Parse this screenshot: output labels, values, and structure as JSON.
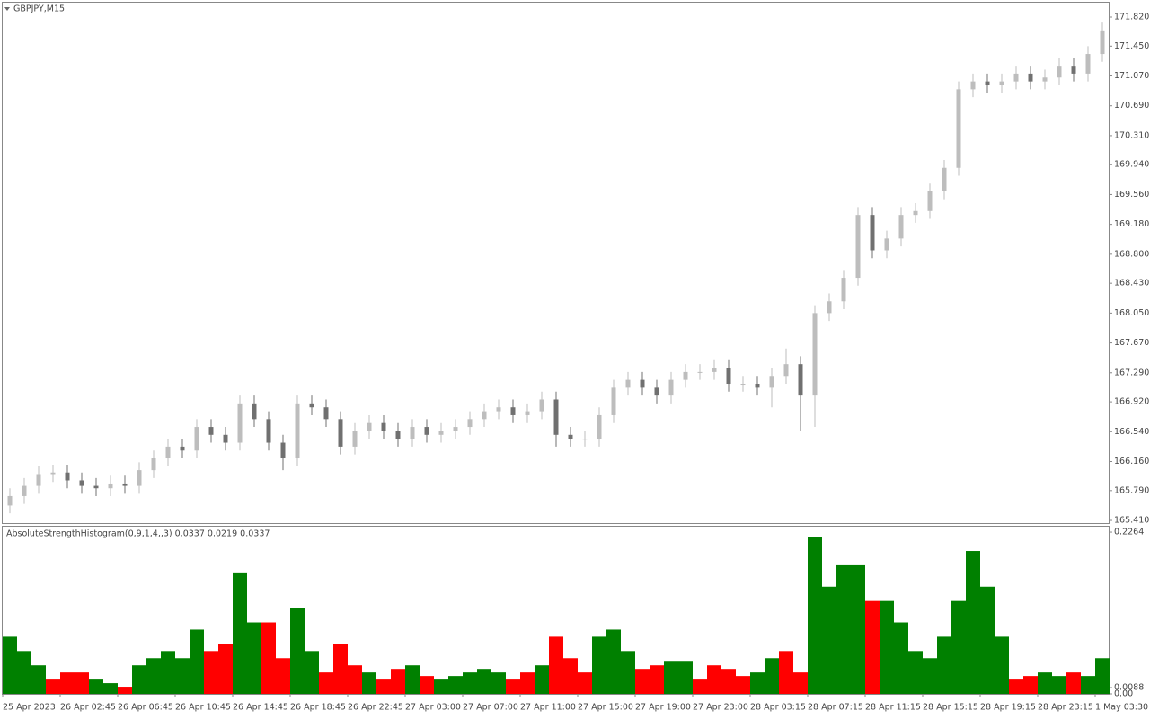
{
  "chart_data": [
    {
      "type": "candlestick",
      "title": "GBPJPY,M15",
      "up_color": "#bdbdbd",
      "down_color": "#707070",
      "ylim": [
        165.376,
        172.003
      ],
      "yticks": [
        {
          "value": 171.82,
          "label": "171.820"
        },
        {
          "value": 171.45,
          "label": "171.450"
        },
        {
          "value": 171.07,
          "label": "171.070"
        },
        {
          "value": 170.69,
          "label": "170.690"
        },
        {
          "value": 170.31,
          "label": "170.310"
        },
        {
          "value": 169.94,
          "label": "169.940"
        },
        {
          "value": 169.56,
          "label": "169.560"
        },
        {
          "value": 169.18,
          "label": "169.180"
        },
        {
          "value": 168.8,
          "label": "168.800"
        },
        {
          "value": 168.43,
          "label": "168.430"
        },
        {
          "value": 168.05,
          "label": "168.050"
        },
        {
          "value": 167.67,
          "label": "167.670"
        },
        {
          "value": 167.29,
          "label": "167.290"
        },
        {
          "value": 166.92,
          "label": "166.920"
        },
        {
          "value": 166.54,
          "label": "166.540"
        },
        {
          "value": 166.16,
          "label": "166.160"
        },
        {
          "value": 165.79,
          "label": "165.790"
        },
        {
          "value": 165.41,
          "label": "165.410"
        }
      ],
      "open": [
        165.6,
        165.72,
        165.85,
        166.0,
        166.02,
        165.92,
        165.85,
        165.82,
        165.88,
        165.85,
        166.05,
        166.2,
        166.35,
        166.3,
        166.6,
        166.5,
        166.4,
        166.9,
        166.7,
        166.4,
        166.2,
        166.9,
        166.85,
        166.7,
        166.35,
        166.55,
        166.65,
        166.55,
        166.45,
        166.6,
        166.5,
        166.55,
        166.6,
        166.7,
        166.8,
        166.85,
        166.75,
        166.8,
        166.95,
        166.5,
        166.45,
        166.45,
        166.75,
        167.1,
        167.2,
        167.1,
        167.0,
        167.2,
        167.3,
        167.3,
        167.35,
        167.15,
        167.15,
        167.1,
        167.25,
        167.4,
        167.0,
        168.05,
        168.2,
        168.5,
        169.3,
        168.85,
        169.0,
        169.3,
        169.35,
        169.6,
        169.9,
        170.9,
        171.0,
        170.95,
        171.0,
        171.1,
        171.0,
        171.05,
        171.2,
        171.1,
        171.35
      ],
      "high": [
        165.82,
        165.95,
        166.1,
        166.12,
        166.12,
        166.02,
        165.95,
        165.98,
        165.98,
        166.15,
        166.3,
        166.45,
        166.45,
        166.7,
        166.7,
        166.6,
        167.0,
        167.0,
        166.8,
        166.5,
        167.0,
        167.0,
        166.95,
        166.8,
        166.65,
        166.75,
        166.75,
        166.65,
        166.7,
        166.7,
        166.65,
        166.7,
        166.8,
        166.9,
        166.95,
        166.95,
        166.9,
        167.05,
        167.05,
        166.6,
        166.55,
        166.85,
        167.2,
        167.3,
        167.3,
        167.2,
        167.3,
        167.4,
        167.4,
        167.45,
        167.45,
        167.25,
        167.25,
        167.35,
        167.6,
        167.5,
        168.15,
        168.3,
        168.6,
        169.4,
        169.4,
        169.1,
        169.4,
        169.45,
        169.7,
        170.0,
        171.0,
        171.1,
        171.1,
        171.1,
        171.2,
        171.2,
        171.15,
        171.3,
        171.3,
        171.45,
        171.75
      ],
      "low": [
        165.5,
        165.62,
        165.75,
        165.9,
        165.82,
        165.75,
        165.72,
        165.72,
        165.75,
        165.75,
        165.95,
        166.1,
        166.2,
        166.2,
        166.4,
        166.3,
        166.3,
        166.6,
        166.3,
        166.05,
        166.1,
        166.75,
        166.6,
        166.25,
        166.25,
        166.45,
        166.45,
        166.35,
        166.35,
        166.4,
        166.4,
        166.45,
        166.5,
        166.6,
        166.7,
        166.65,
        166.65,
        166.7,
        166.35,
        166.35,
        166.35,
        166.35,
        166.65,
        167.0,
        167.0,
        166.9,
        166.9,
        167.1,
        167.2,
        167.2,
        167.05,
        167.05,
        167.0,
        166.85,
        167.15,
        166.55,
        166.6,
        167.95,
        168.1,
        168.4,
        168.75,
        168.75,
        168.9,
        169.2,
        169.25,
        169.5,
        169.8,
        170.8,
        170.85,
        170.85,
        170.9,
        170.9,
        170.9,
        170.95,
        171.0,
        171.0,
        171.25
      ],
      "close": [
        165.72,
        165.85,
        166.0,
        166.02,
        165.92,
        165.85,
        165.82,
        165.88,
        165.85,
        166.05,
        166.2,
        166.35,
        166.3,
        166.6,
        166.5,
        166.4,
        166.9,
        166.7,
        166.4,
        166.2,
        166.9,
        166.85,
        166.7,
        166.35,
        166.55,
        166.65,
        166.55,
        166.45,
        166.6,
        166.5,
        166.55,
        166.6,
        166.7,
        166.8,
        166.85,
        166.75,
        166.8,
        166.95,
        166.5,
        166.45,
        166.45,
        166.75,
        167.1,
        167.2,
        167.1,
        167.0,
        167.2,
        167.3,
        167.3,
        167.35,
        167.15,
        167.15,
        167.1,
        167.25,
        167.4,
        167.0,
        168.05,
        168.2,
        168.5,
        169.3,
        168.85,
        169.0,
        169.3,
        169.35,
        169.6,
        169.9,
        170.9,
        171.0,
        170.95,
        171.0,
        171.1,
        171.0,
        171.05,
        171.2,
        171.1,
        171.35,
        171.65
      ]
    },
    {
      "type": "bar",
      "title": "AbsoluteStrengthHistogram(0,9,1,4,,3) 0.0337 0.0219 0.0337",
      "ylim": [
        0,
        0.234
      ],
      "yticks": [
        {
          "value": 0,
          "label": "0.00"
        },
        0.0088,
        0.2264
      ],
      "categories": [
        "25 Apr 2023",
        null,
        null,
        null,
        "26 Apr 02:45",
        null,
        null,
        null,
        "26 Apr 06:45",
        null,
        null,
        null,
        "26 Apr 10:45",
        null,
        null,
        null,
        "26 Apr 14:45",
        null,
        null,
        null,
        "26 Apr 18:45",
        null,
        null,
        null,
        "26 Apr 22:45",
        null,
        null,
        null,
        "27 Apr 03:00",
        null,
        null,
        null,
        "27 Apr 07:00",
        null,
        null,
        null,
        "27 Apr 11:00",
        null,
        null,
        null,
        "27 Apr 15:00",
        null,
        null,
        null,
        "27 Apr 19:00",
        null,
        null,
        null,
        "27 Apr 23:00",
        null,
        null,
        null,
        "28 Apr 03:15",
        null,
        null,
        null,
        "28 Apr 07:15",
        null,
        null,
        null,
        "28 Apr 11:15",
        null,
        null,
        null,
        "28 Apr 15:15",
        null,
        null,
        null,
        "28 Apr 19:15",
        null,
        null,
        null,
        "28 Apr 23:15",
        null,
        null,
        null,
        "1 May 03:30"
      ],
      "series": [
        {
          "color": "#008000",
          "values": [
            0.08,
            0.06,
            0.04,
            null,
            null,
            null,
            0.02,
            0.015,
            null,
            0.04,
            0.05,
            0.06,
            0.05,
            0.09,
            null,
            null,
            0.17,
            0.1,
            null,
            null,
            0.12,
            0.06,
            null,
            null,
            null,
            0.03,
            null,
            null,
            0.04,
            null,
            0.02,
            0.025,
            0.03,
            0.035,
            0.03,
            null,
            null,
            0.04,
            null,
            null,
            null,
            0.08,
            0.09,
            0.06,
            null,
            null,
            0.045,
            0.045,
            null,
            null,
            null,
            null,
            0.03,
            0.05,
            null,
            null,
            0.22,
            0.15,
            0.18,
            0.18,
            null,
            0.13,
            0.1,
            0.06,
            0.05,
            0.08,
            0.13,
            0.2,
            0.15,
            0.08,
            null,
            null,
            0.03,
            0.025,
            null,
            0.025,
            0.05
          ]
        },
        {
          "color": "#ff0000",
          "values": [
            null,
            null,
            null,
            0.02,
            0.03,
            0.03,
            null,
            null,
            0.01,
            null,
            null,
            null,
            null,
            null,
            0.06,
            0.07,
            null,
            null,
            0.1,
            0.05,
            null,
            null,
            0.03,
            0.07,
            0.04,
            null,
            0.02,
            0.035,
            null,
            0.025,
            null,
            null,
            null,
            null,
            null,
            0.02,
            0.03,
            null,
            0.08,
            0.05,
            0.03,
            null,
            null,
            null,
            0.035,
            0.04,
            null,
            null,
            0.02,
            0.04,
            0.035,
            0.025,
            null,
            null,
            0.06,
            0.03,
            null,
            null,
            null,
            null,
            0.13,
            null,
            null,
            null,
            null,
            null,
            null,
            null,
            null,
            null,
            0.02,
            0.025,
            null,
            null,
            0.03,
            null,
            null
          ]
        }
      ]
    }
  ]
}
